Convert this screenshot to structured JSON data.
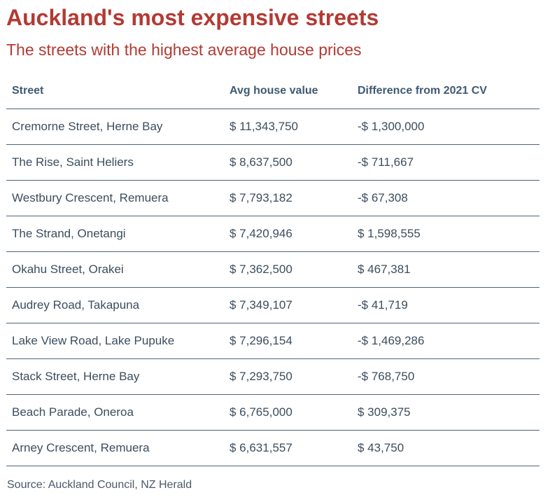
{
  "title": "Auckland's most expensive streets",
  "subtitle": "The streets with the highest average house prices",
  "table": {
    "headers": [
      "Street",
      "Avg house value",
      "Difference from 2021 CV"
    ],
    "rows": [
      [
        "Cremorne Street, Herne Bay",
        "$ 11,343,750",
        "-$ 1,300,000"
      ],
      [
        "The Rise, Saint Heliers",
        "$ 8,637,500",
        "-$ 711,667"
      ],
      [
        "Westbury Crescent, Remuera",
        "$ 7,793,182",
        "-$ 67,308"
      ],
      [
        "The Strand, Onetangi",
        "$ 7,420,946",
        "$ 1,598,555"
      ],
      [
        "Okahu Street, Orakei",
        "$ 7,362,500",
        "$ 467,381"
      ],
      [
        "Audrey Road, Takapuna",
        "$ 7,349,107",
        "-$ 41,719"
      ],
      [
        "Lake View Road, Lake Pupuke",
        "$ 7,296,154",
        "-$ 1,469,286"
      ],
      [
        "Stack Street, Herne Bay",
        "$ 7,293,750",
        "-$ 768,750"
      ],
      [
        "Beach Parade, Oneroa",
        "$ 6,765,000",
        "$ 309,375"
      ],
      [
        "Arney Crescent, Remuera",
        "$ 6,631,557",
        "$ 43,750"
      ]
    ]
  },
  "source": "Source: Auckland Council, NZ Herald",
  "colors": {
    "title": "#b33a33",
    "header_text": "#3f5a72",
    "body_text": "#3c4d5e",
    "rule": "#4f6478"
  }
}
